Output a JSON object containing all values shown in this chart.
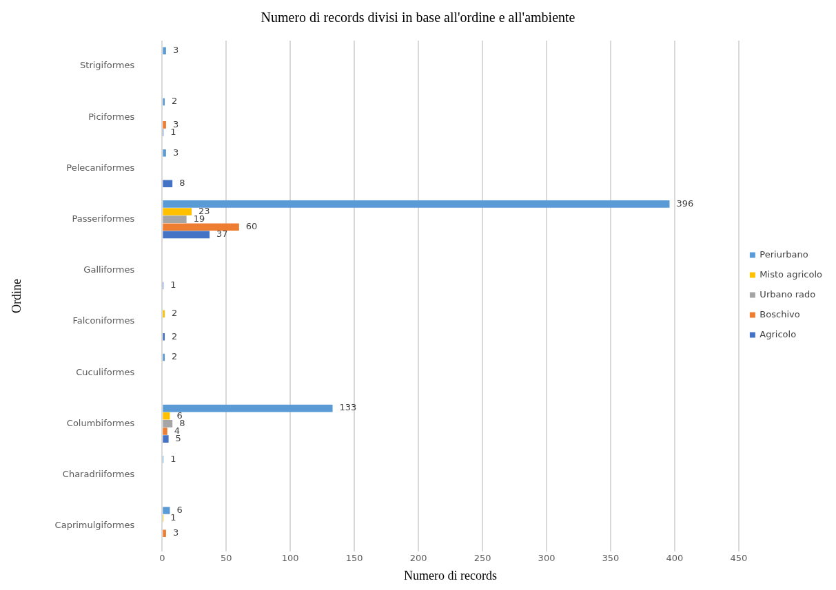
{
  "chart_data": {
    "type": "bar",
    "orientation": "horizontal",
    "title": "Numero di records divisi in base all'ordine e all'ambiente",
    "xlabel": "Numero di records",
    "ylabel": "Ordine",
    "categories": [
      "Strigiformes",
      "Piciformes",
      "Pelecaniformes",
      "Passeriformes",
      "Galliformes",
      "Falconiformes",
      "Cuculiformes",
      "Columbiformes",
      "Charadriiformes",
      "Caprimulgiformes"
    ],
    "series": [
      {
        "name": "Periurbano",
        "color": "#5b9bd5",
        "values": [
          3,
          2,
          3,
          396,
          null,
          null,
          2,
          133,
          1,
          6
        ]
      },
      {
        "name": "Misto agricolo",
        "color": "#ffc000",
        "values": [
          null,
          null,
          null,
          23,
          null,
          2,
          null,
          6,
          null,
          1
        ]
      },
      {
        "name": "Urbano rado",
        "color": "#a5a5a5",
        "values": [
          null,
          null,
          null,
          19,
          null,
          null,
          null,
          8,
          null,
          null
        ]
      },
      {
        "name": "Boschivo",
        "color": "#ed7d31",
        "values": [
          null,
          3,
          null,
          60,
          null,
          null,
          null,
          4,
          null,
          3
        ]
      },
      {
        "name": "Agricolo",
        "color": "#4472c4",
        "values": [
          null,
          1,
          8,
          37,
          1,
          2,
          null,
          5,
          null,
          null
        ]
      }
    ],
    "xlim": [
      0,
      450
    ],
    "xticks": [
      0,
      50,
      100,
      150,
      200,
      250,
      300,
      350,
      400,
      450
    ],
    "grid": "x",
    "legend": "right",
    "data_labels": true
  }
}
